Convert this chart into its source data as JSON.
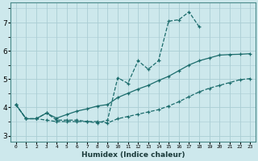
{
  "xlabel": "Humidex (Indice chaleur)",
  "background_color": "#cde8ec",
  "grid_color": "#aacdd4",
  "line_color": "#1a6b6b",
  "x_ticks": [
    0,
    1,
    2,
    3,
    4,
    5,
    6,
    7,
    8,
    9,
    10,
    11,
    12,
    13,
    14,
    15,
    16,
    17,
    18,
    19,
    20,
    21,
    22,
    23
  ],
  "ylim": [
    2.8,
    7.7
  ],
  "xlim": [
    -0.5,
    23.5
  ],
  "curve1_x": [
    0,
    1,
    2,
    3,
    4,
    5,
    6,
    7,
    8,
    9,
    10,
    11,
    12,
    13,
    14,
    15,
    16,
    17,
    18
  ],
  "curve1_y": [
    4.1,
    3.6,
    3.6,
    3.8,
    3.55,
    3.55,
    3.55,
    3.5,
    3.45,
    3.55,
    5.05,
    4.85,
    5.65,
    5.35,
    5.65,
    7.05,
    7.1,
    7.38,
    6.85
  ],
  "curve2_x": [
    0,
    1,
    2,
    3,
    4,
    5,
    6,
    7,
    8,
    9,
    10,
    11,
    12,
    13,
    14,
    15,
    16,
    17,
    18,
    19,
    20,
    21,
    22,
    23
  ],
  "curve2_y": [
    4.1,
    3.6,
    3.6,
    3.8,
    3.62,
    3.75,
    3.87,
    3.95,
    4.05,
    4.1,
    4.35,
    4.5,
    4.65,
    4.78,
    4.95,
    5.1,
    5.3,
    5.5,
    5.65,
    5.75,
    5.85,
    5.87,
    5.88,
    5.9
  ],
  "curve3_x": [
    0,
    1,
    2,
    3,
    4,
    5,
    6,
    7,
    8,
    9,
    10,
    11,
    12,
    13,
    14,
    15,
    16,
    17,
    18,
    19,
    20,
    21,
    22,
    23
  ],
  "curve3_y": [
    4.1,
    3.6,
    3.6,
    3.55,
    3.5,
    3.5,
    3.5,
    3.5,
    3.5,
    3.45,
    3.6,
    3.68,
    3.76,
    3.84,
    3.92,
    4.05,
    4.2,
    4.38,
    4.55,
    4.68,
    4.78,
    4.88,
    4.98,
    5.02
  ]
}
